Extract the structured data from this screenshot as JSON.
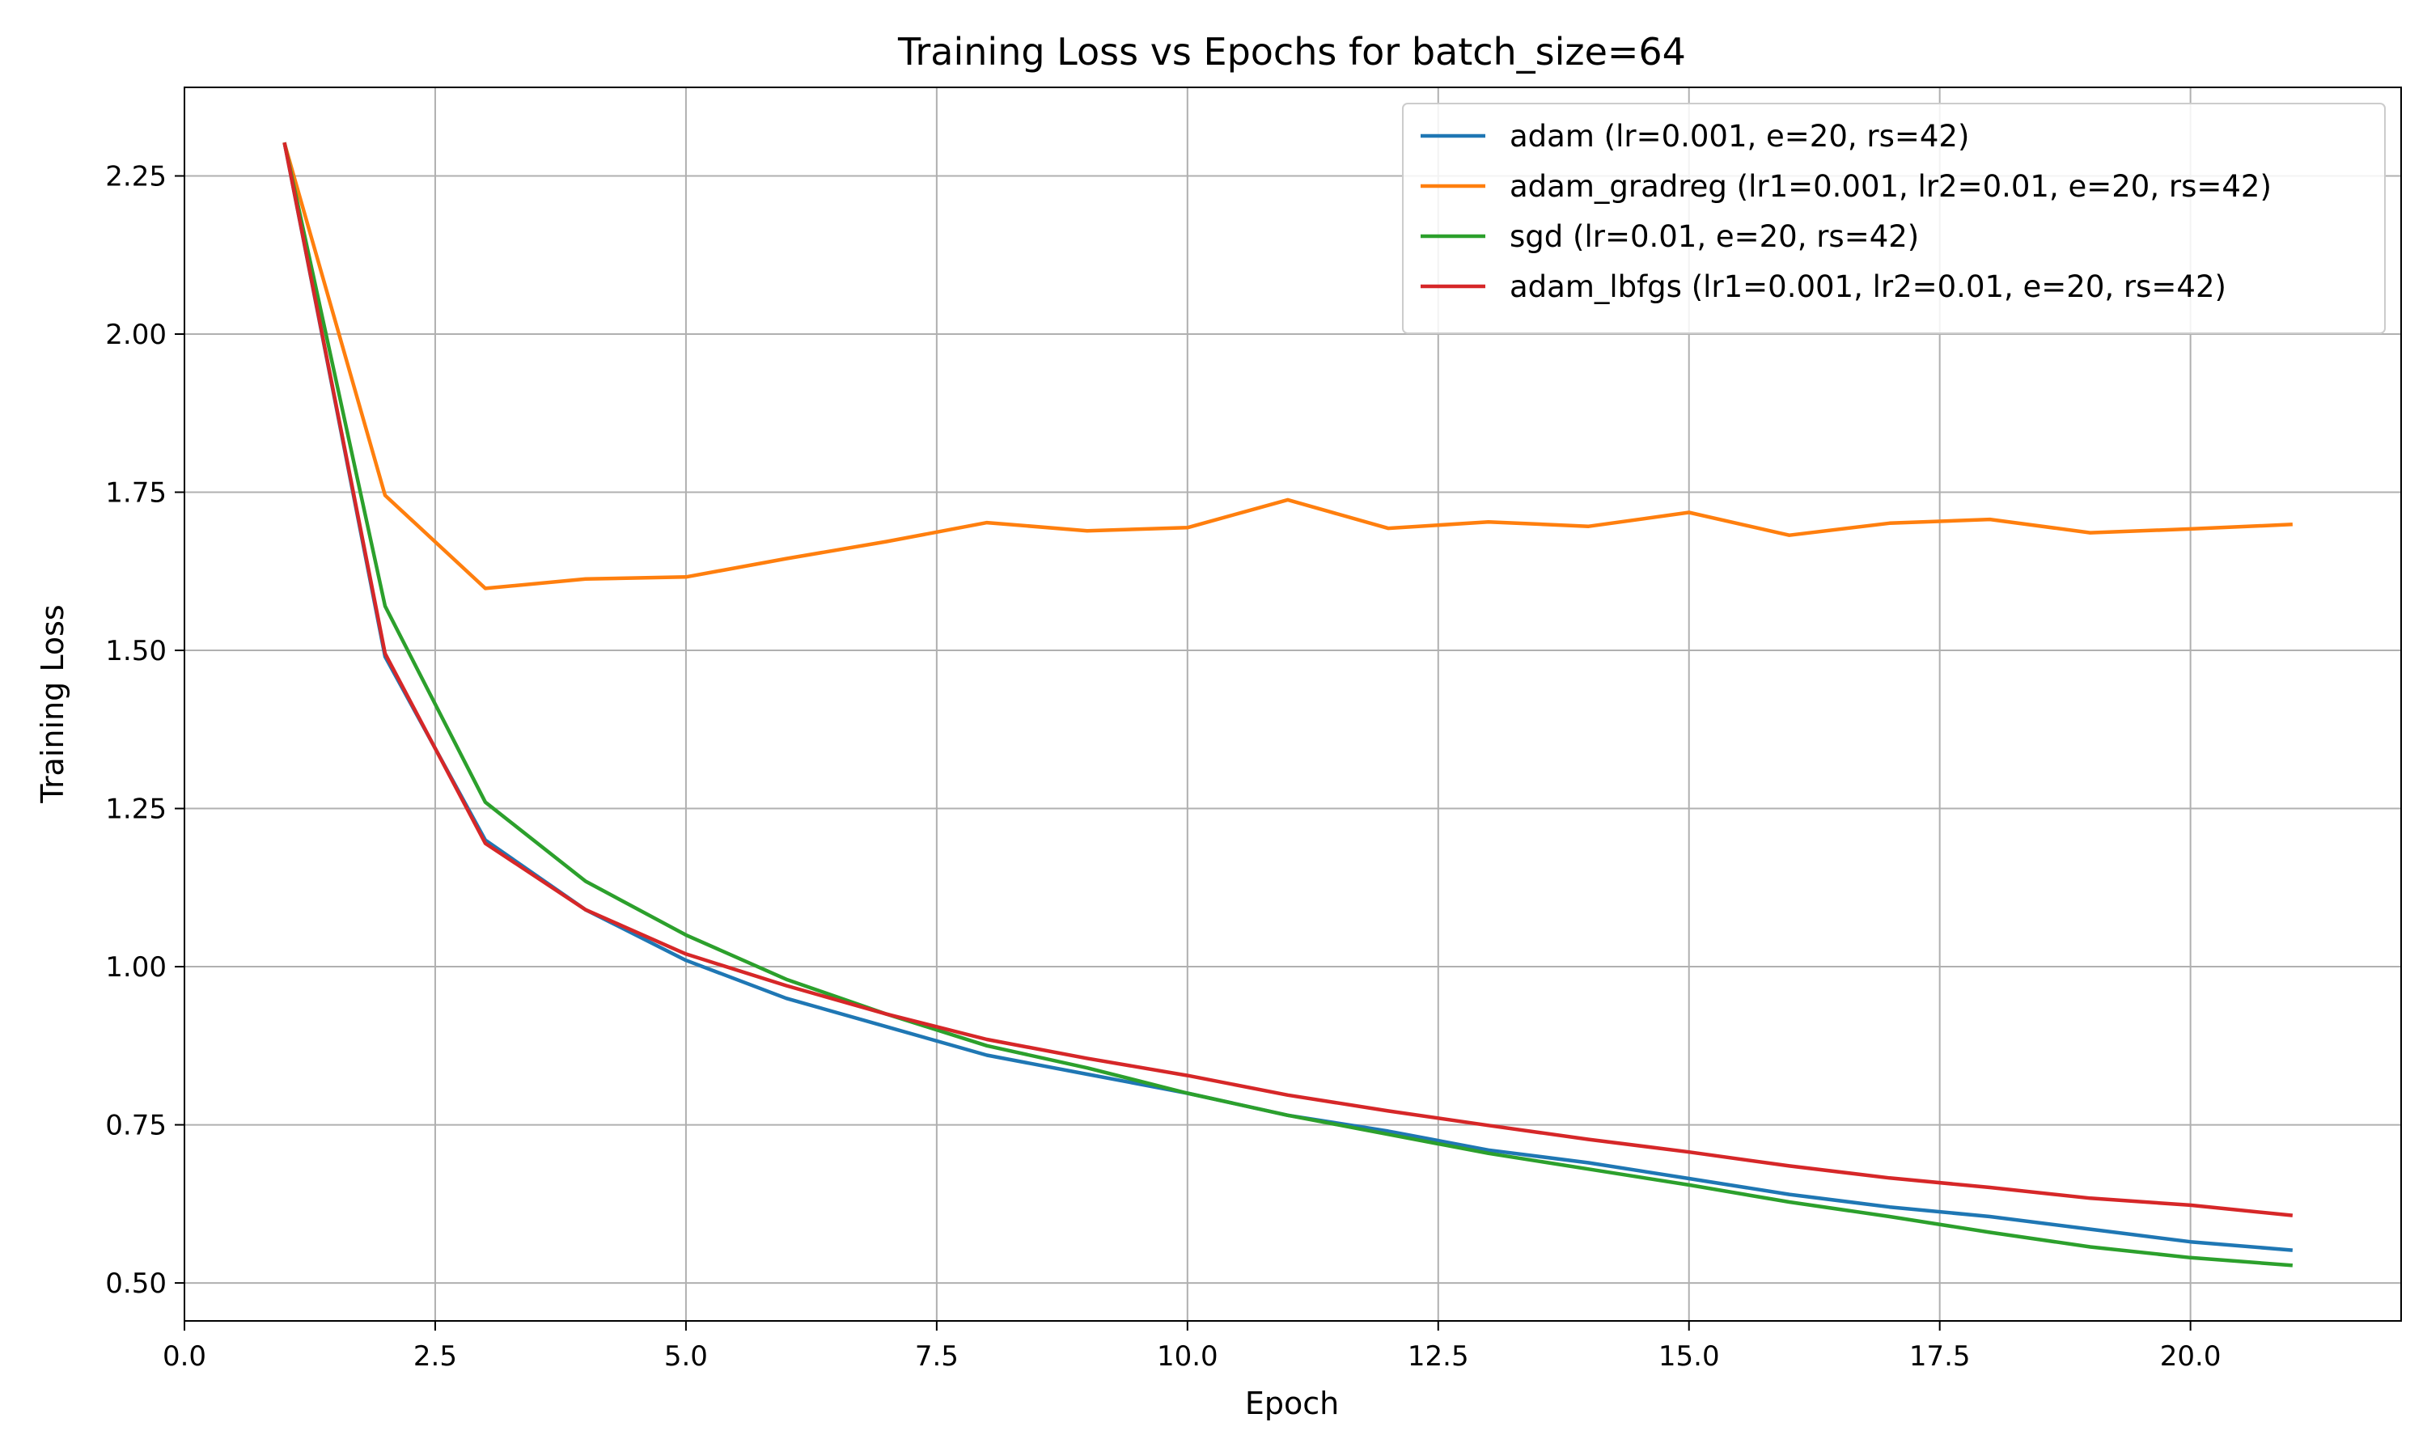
{
  "chart_data": {
    "type": "line",
    "title": "Training Loss vs Epochs for batch_size=64",
    "xlabel": "Epoch",
    "ylabel": "Training Loss",
    "xlim": [
      0,
      22.1
    ],
    "ylim": [
      0.44,
      2.39
    ],
    "xticks": [
      0.0,
      2.5,
      5.0,
      7.5,
      10.0,
      12.5,
      15.0,
      17.5,
      20.0
    ],
    "xtick_labels": [
      "0.0",
      "2.5",
      "5.0",
      "7.5",
      "10.0",
      "12.5",
      "15.0",
      "17.5",
      "20.0"
    ],
    "yticks": [
      0.5,
      0.75,
      1.0,
      1.25,
      1.5,
      1.75,
      2.0,
      2.25
    ],
    "ytick_labels": [
      "0.50",
      "0.75",
      "1.00",
      "1.25",
      "1.50",
      "1.75",
      "2.00",
      "2.25"
    ],
    "grid": true,
    "legend_position": "top-right",
    "x": [
      1,
      2,
      3,
      4,
      5,
      6,
      7,
      8,
      9,
      10,
      11,
      12,
      13,
      14,
      15,
      16,
      17,
      18,
      19,
      20,
      21
    ],
    "series": [
      {
        "name": "adam (lr=0.001, e=20, rs=42)",
        "color": "#1f77b4",
        "values": [
          2.3,
          1.49,
          1.2,
          1.09,
          1.01,
          0.95,
          0.905,
          0.86,
          0.83,
          0.8,
          0.765,
          0.74,
          0.71,
          0.69,
          0.665,
          0.64,
          0.62,
          0.605,
          0.585,
          0.565,
          0.552
        ]
      },
      {
        "name": "adam_gradreg (lr1=0.001, lr2=0.01, e=20, rs=42)",
        "color": "#ff7f0e",
        "values": [
          2.3,
          1.745,
          1.598,
          1.613,
          1.616,
          1.645,
          1.672,
          1.702,
          1.689,
          1.694,
          1.738,
          1.693,
          1.703,
          1.696,
          1.718,
          1.682,
          1.701,
          1.707,
          1.686,
          1.692,
          1.699
        ]
      },
      {
        "name": "sgd (lr=0.01, e=20, rs=42)",
        "color": "#2ca02c",
        "values": [
          2.3,
          1.57,
          1.26,
          1.135,
          1.05,
          0.98,
          0.925,
          0.875,
          0.84,
          0.8,
          0.765,
          0.735,
          0.705,
          0.68,
          0.655,
          0.628,
          0.605,
          0.58,
          0.557,
          0.54,
          0.528
        ]
      },
      {
        "name": "adam_lbfgs (lr1=0.001, lr2=0.01, e=20, rs=42)",
        "color": "#d62728",
        "values": [
          2.3,
          1.495,
          1.195,
          1.09,
          1.02,
          0.97,
          0.925,
          0.885,
          0.855,
          0.828,
          0.797,
          0.772,
          0.749,
          0.727,
          0.707,
          0.685,
          0.666,
          0.651,
          0.634,
          0.623,
          0.607
        ]
      }
    ]
  }
}
